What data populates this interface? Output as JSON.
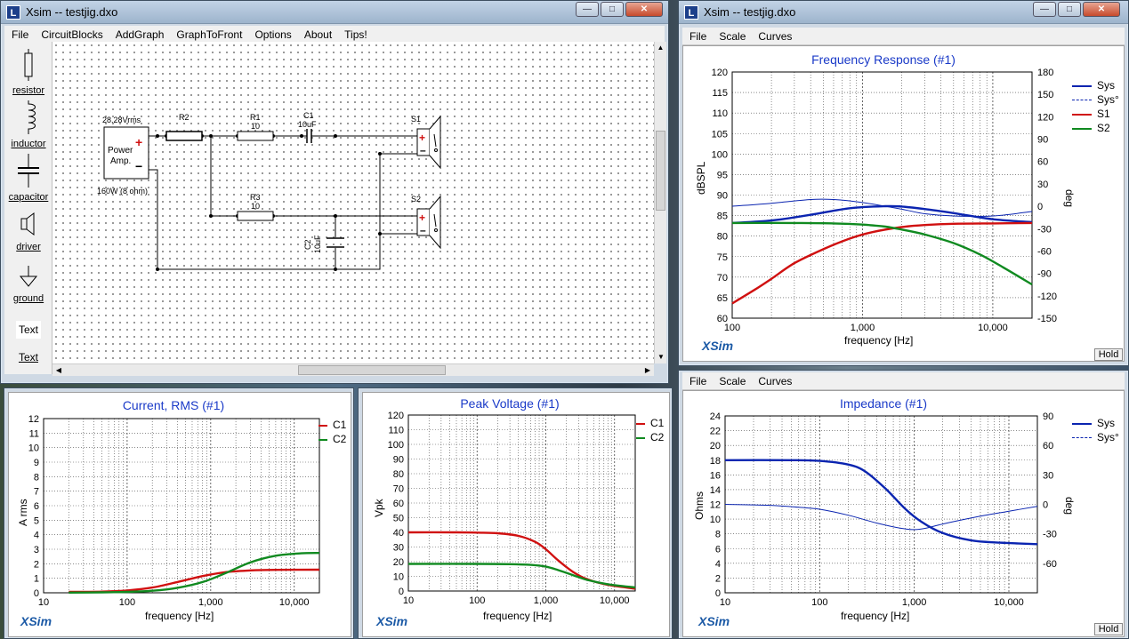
{
  "schematic_window": {
    "title": "Xsim -- testjig.dxo",
    "menu": [
      "File",
      "CircuitBlocks",
      "AddGraph",
      "GraphToFront",
      "Options",
      "About",
      "Tips!"
    ],
    "tools": [
      {
        "label": "resistor",
        "icon": "resistor-icon"
      },
      {
        "label": "inductor",
        "icon": "inductor-icon"
      },
      {
        "label": "capacitor",
        "icon": "capacitor-icon"
      },
      {
        "label": "driver",
        "icon": "speaker-icon"
      },
      {
        "label": "ground",
        "icon": "ground-icon"
      },
      {
        "label": "Text",
        "icon": "text-box"
      },
      {
        "label": "Text",
        "icon": "text-label"
      }
    ],
    "components": {
      "amp_voltage": "28.28Vrms",
      "amp_label_1": "Power",
      "amp_label_2": "Amp.",
      "amp_plus": "+",
      "amp_minus": "−",
      "amp_rating": "160W (8 ohm)",
      "r2": "R2",
      "r1": "R1",
      "r1_value": "10",
      "c1": "C1",
      "c1_value": "10uF",
      "s1": "S1",
      "r3": "R3",
      "r3_value": "10",
      "c2": "C2",
      "c2_value": "10uF",
      "s2": "S2"
    }
  },
  "freq_window": {
    "title": "Xsim -- testjig.dxo",
    "menu": [
      "File",
      "Scale",
      "Curves"
    ],
    "hold": "Hold"
  },
  "imp_window": {
    "menu": [
      "File",
      "Scale",
      "Curves"
    ],
    "hold": "Hold"
  },
  "brand": "XSim",
  "chart_data": [
    {
      "id": "freq",
      "type": "line",
      "title": "Frequency Response (#1)",
      "xlabel": "frequency [Hz]",
      "ylabel": "dBSPL",
      "y2label": "deg",
      "xscale": "log",
      "xlim": [
        100,
        20000
      ],
      "ylim": [
        60,
        120
      ],
      "y2lim": [
        -150,
        180
      ],
      "xticks": [
        100,
        1000,
        10000
      ],
      "xticklabels": [
        "100",
        "1,000",
        "10,000"
      ],
      "yticks": [
        60,
        65,
        70,
        75,
        80,
        85,
        90,
        95,
        100,
        105,
        110,
        115,
        120
      ],
      "y2ticks": [
        -150,
        -120,
        -90,
        -60,
        -30,
        0,
        30,
        60,
        90,
        120,
        150,
        180
      ],
      "legend_position": "right",
      "series": [
        {
          "name": "Sys",
          "color": "#0a24b0",
          "style": "thick",
          "axis": "y",
          "x": [
            100,
            200,
            400,
            800,
            1500,
            2000,
            3000,
            5000,
            10000,
            20000
          ],
          "y": [
            83.2,
            83.8,
            85.2,
            86.8,
            87.3,
            87.2,
            86.6,
            85.6,
            84.1,
            83.4
          ]
        },
        {
          "name": "Sys°",
          "color": "#0a24b0",
          "style": "thin",
          "axis": "y2",
          "x": [
            100,
            200,
            400,
            600,
            1000,
            2000,
            3000,
            5000,
            10000,
            20000
          ],
          "y": [
            0,
            4,
            9,
            9,
            5,
            -4,
            -10,
            -13,
            -13,
            -7
          ]
        },
        {
          "name": "S1",
          "color": "#d01010",
          "style": "thick",
          "axis": "y",
          "x": [
            100,
            150,
            200,
            300,
            500,
            800,
            1200,
            2000,
            3000,
            5000,
            10000,
            20000
          ],
          "y": [
            63.6,
            67,
            69.6,
            73.4,
            76.8,
            79.4,
            81,
            82.2,
            82.7,
            83,
            83.1,
            83.2
          ]
        },
        {
          "name": "S2",
          "color": "#108a20",
          "style": "thick",
          "axis": "y",
          "x": [
            100,
            300,
            600,
            1000,
            1500,
            2000,
            3000,
            5000,
            8000,
            12000,
            20000
          ],
          "y": [
            83.2,
            83.2,
            83.1,
            82.8,
            82.3,
            81.6,
            80.4,
            78.3,
            75.5,
            72.4,
            68.2
          ]
        }
      ]
    },
    {
      "id": "current",
      "type": "line",
      "title": "Current, RMS (#1)",
      "xlabel": "frequency [Hz]",
      "ylabel": "A rms",
      "xscale": "log",
      "xlim": [
        10,
        20000
      ],
      "ylim": [
        0,
        12
      ],
      "xticks": [
        10,
        100,
        1000,
        10000
      ],
      "xticklabels": [
        "10",
        "100",
        "1,000",
        "10,000"
      ],
      "yticks": [
        0,
        1,
        2,
        3,
        4,
        5,
        6,
        7,
        8,
        9,
        10,
        11,
        12
      ],
      "legend_position": "top-right",
      "series": [
        {
          "name": "C1",
          "color": "#d01010",
          "style": "thick",
          "x": [
            20,
            50,
            100,
            200,
            400,
            800,
            1500,
            3000,
            6000,
            20000
          ],
          "y": [
            0.06,
            0.08,
            0.16,
            0.36,
            0.74,
            1.15,
            1.42,
            1.54,
            1.58,
            1.59
          ]
        },
        {
          "name": "C2",
          "color": "#108a20",
          "style": "thick",
          "x": [
            20,
            50,
            100,
            200,
            400,
            800,
            1500,
            3000,
            6000,
            12000,
            20000
          ],
          "y": [
            0.01,
            0.03,
            0.06,
            0.14,
            0.34,
            0.74,
            1.35,
            2.1,
            2.55,
            2.72,
            2.74
          ]
        }
      ]
    },
    {
      "id": "voltage",
      "type": "line",
      "title": "Peak Voltage (#1)",
      "xlabel": "frequency [Hz]",
      "ylabel": "Vpk",
      "xscale": "log",
      "xlim": [
        10,
        20000
      ],
      "ylim": [
        0,
        120
      ],
      "xticks": [
        10,
        100,
        1000,
        10000
      ],
      "xticklabels": [
        "10",
        "100",
        "1,000",
        "10,000"
      ],
      "yticks": [
        0,
        10,
        20,
        30,
        40,
        50,
        60,
        70,
        80,
        90,
        100,
        110,
        120
      ],
      "legend_position": "top-right",
      "series": [
        {
          "name": "C1",
          "color": "#d01010",
          "style": "thick",
          "x": [
            10,
            50,
            100,
            200,
            400,
            700,
            1000,
            1500,
            2500,
            4000,
            8000,
            20000
          ],
          "y": [
            40,
            40,
            39.8,
            39.4,
            37.6,
            33.5,
            28.5,
            21,
            13,
            8,
            4.2,
            1.6
          ]
        },
        {
          "name": "C2",
          "color": "#108a20",
          "style": "thick",
          "x": [
            10,
            100,
            300,
            600,
            1000,
            1500,
            2500,
            4000,
            8000,
            20000
          ],
          "y": [
            18.5,
            18.5,
            18.3,
            17.8,
            16.6,
            14.3,
            10.8,
            7.6,
            4.6,
            2.4
          ]
        }
      ]
    },
    {
      "id": "impedance",
      "type": "line",
      "title": "Impedance (#1)",
      "xlabel": "frequency [Hz]",
      "ylabel": "Ohms",
      "y2label": "deg",
      "xscale": "log",
      "xlim": [
        10,
        20000
      ],
      "ylim": [
        0,
        24
      ],
      "y2lim": [
        -90,
        90
      ],
      "xticks": [
        10,
        100,
        1000,
        10000
      ],
      "xticklabels": [
        "10",
        "100",
        "1,000",
        "10,000"
      ],
      "yticks": [
        0,
        2,
        4,
        6,
        8,
        10,
        12,
        14,
        16,
        18,
        20,
        22,
        24
      ],
      "y2ticks": [
        -60,
        -30,
        0,
        30,
        60,
        90
      ],
      "legend_position": "top-right",
      "series": [
        {
          "name": "Sys",
          "color": "#0a24b0",
          "style": "thick",
          "axis": "y",
          "x": [
            10,
            50,
            100,
            200,
            300,
            500,
            800,
            1200,
            2000,
            4000,
            8000,
            20000
          ],
          "y": [
            18,
            18,
            17.9,
            17.4,
            16.5,
            14.1,
            11.4,
            9.6,
            8.1,
            7.1,
            6.8,
            6.6
          ]
        },
        {
          "name": "Sys°",
          "color": "#0a24b0",
          "style": "thin",
          "axis": "y2",
          "x": [
            10,
            30,
            60,
            100,
            200,
            400,
            800,
            1200,
            2000,
            5000,
            10000,
            20000
          ],
          "y": [
            0,
            -1,
            -3,
            -5,
            -11,
            -19,
            -25,
            -25,
            -20,
            -12,
            -7,
            -2
          ]
        }
      ]
    }
  ]
}
